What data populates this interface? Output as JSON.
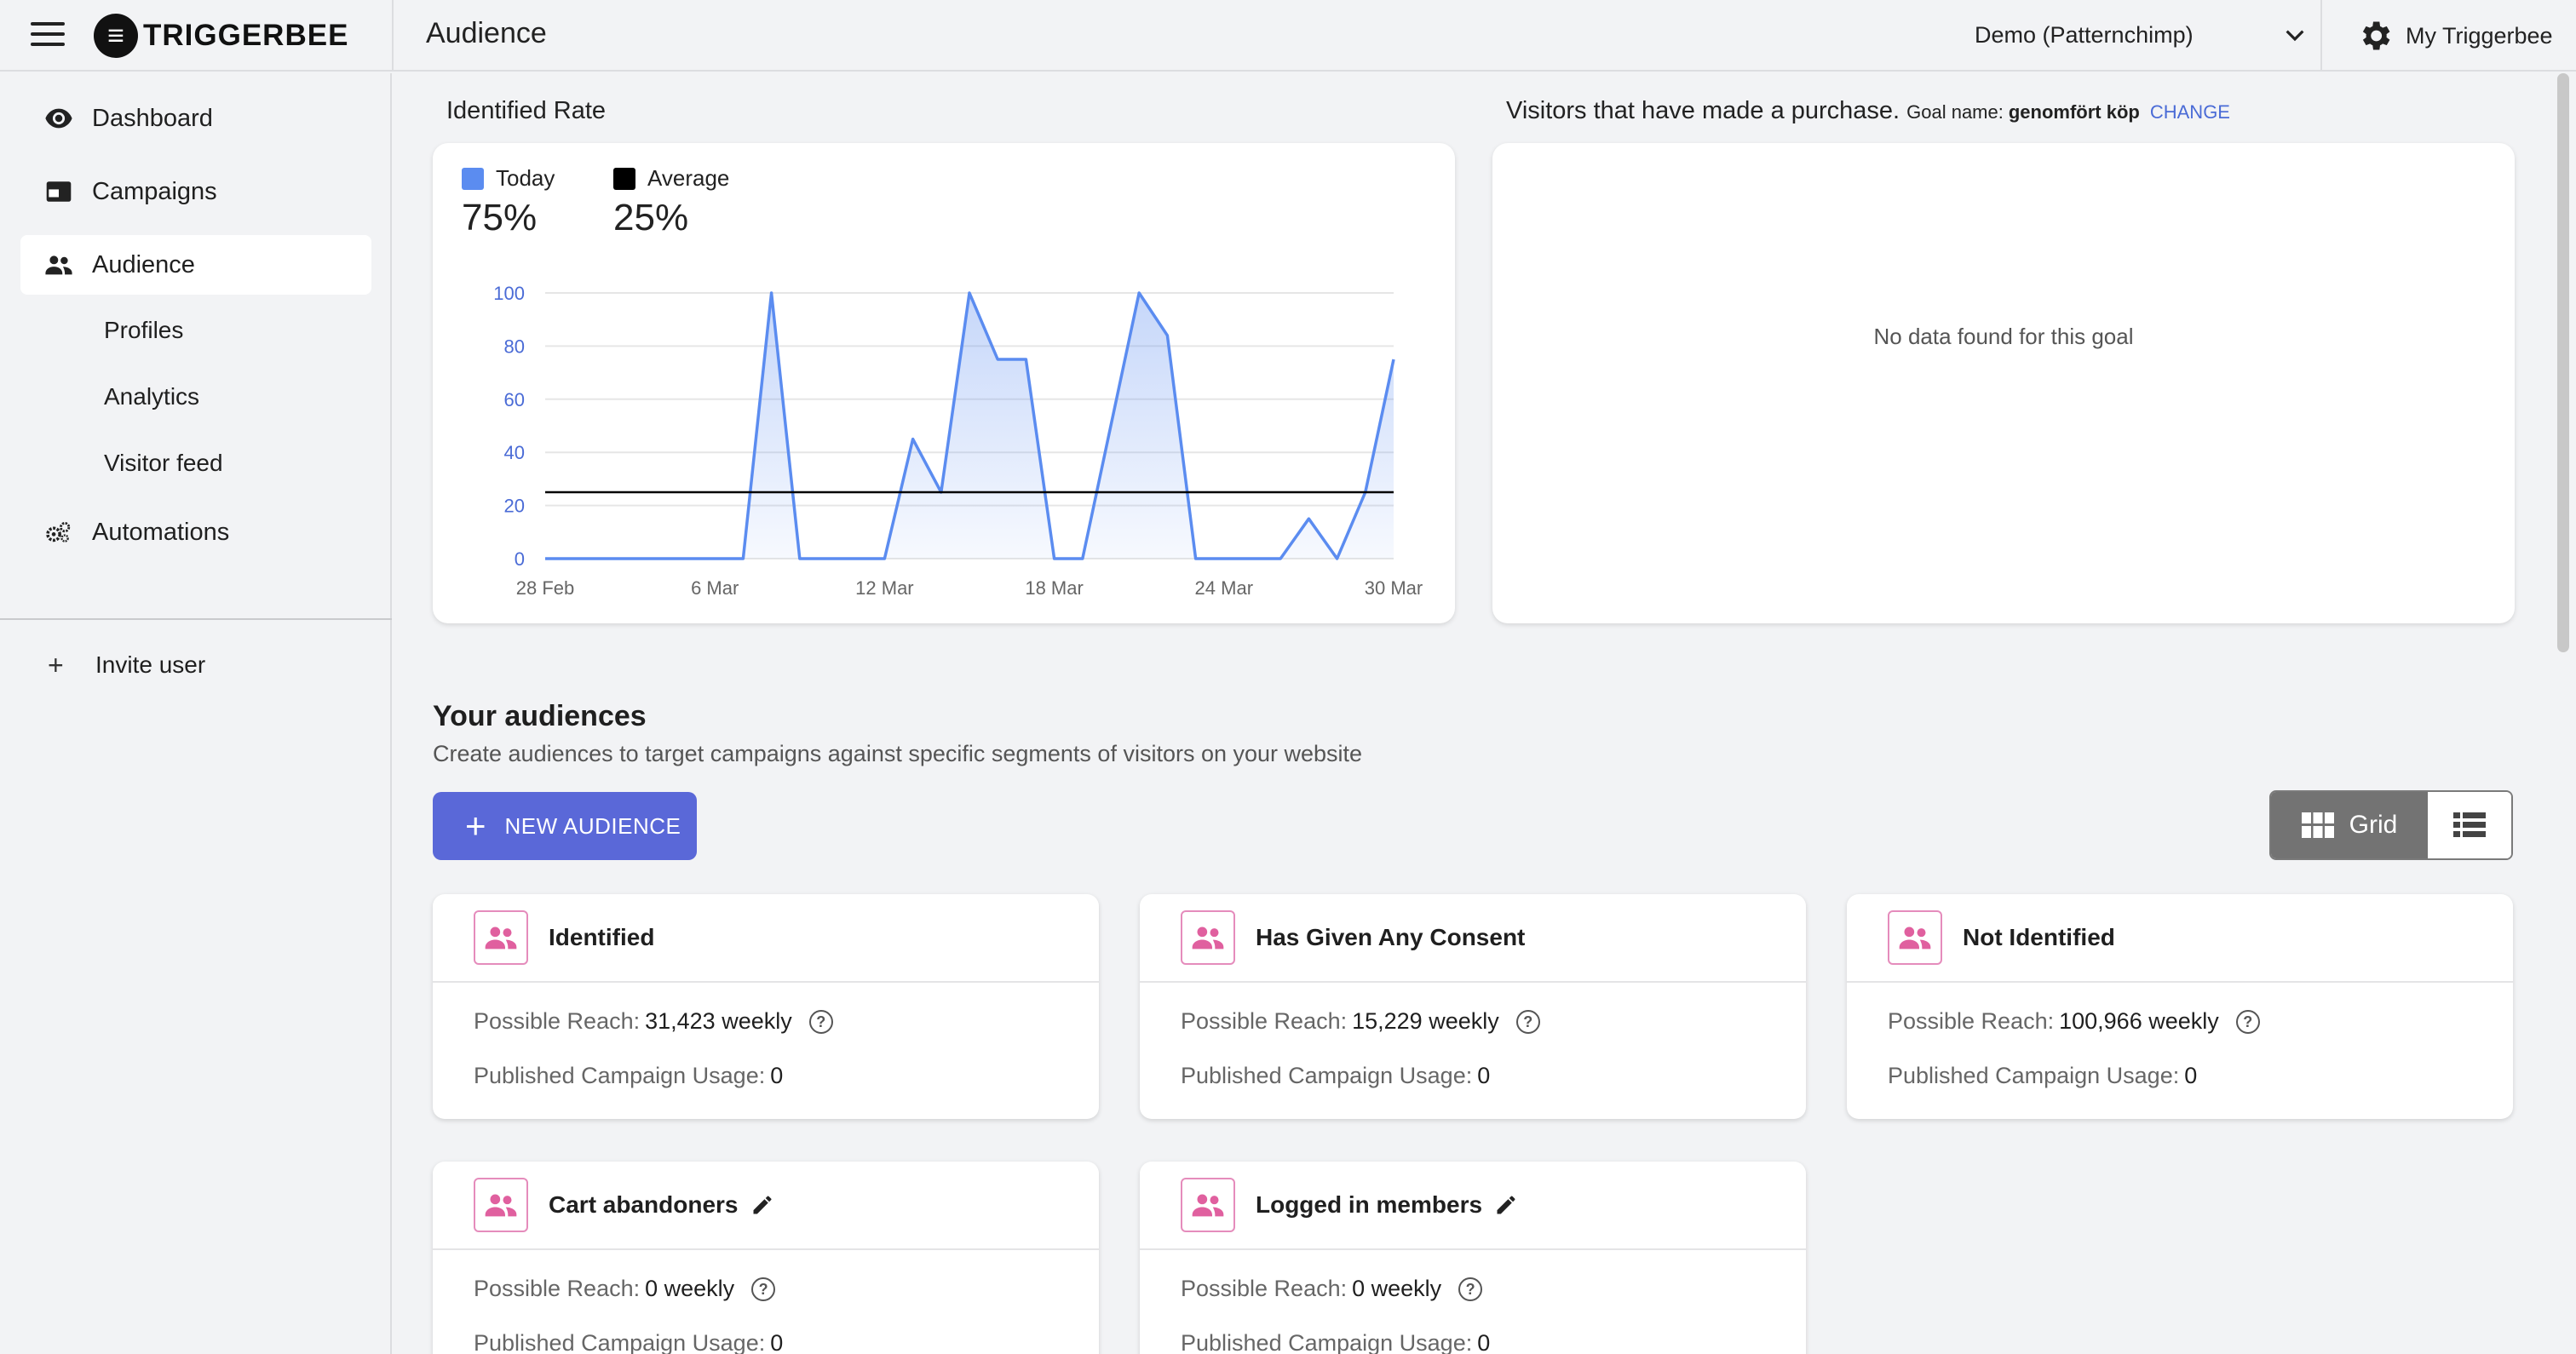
{
  "app": {
    "brand": "TRIGGERBEE",
    "page_title": "Audience"
  },
  "header": {
    "account": "Demo (Patternchimp)",
    "my_account": "My Triggerbee"
  },
  "sidebar": {
    "items": [
      {
        "label": "Dashboard",
        "icon": "eye-icon"
      },
      {
        "label": "Campaigns",
        "icon": "campaign-icon"
      },
      {
        "label": "Audience",
        "icon": "people-icon",
        "active": true
      },
      {
        "label": "Automations",
        "icon": "gears-icon"
      }
    ],
    "subitems": [
      "Profiles",
      "Analytics",
      "Visitor feed"
    ],
    "invite": "Invite user"
  },
  "identified_rate": {
    "title": "Identified Rate",
    "today_label": "Today",
    "today_value": "75%",
    "average_label": "Average",
    "average_value": "25%",
    "colors": {
      "today": "#5b8cf0",
      "average": "#000000"
    }
  },
  "chart_data": {
    "type": "area",
    "x": [
      "28 Feb",
      "1 Mar",
      "2 Mar",
      "3 Mar",
      "4 Mar",
      "5 Mar",
      "6 Mar",
      "7 Mar",
      "8 Mar",
      "9 Mar",
      "10 Mar",
      "11 Mar",
      "12 Mar",
      "13 Mar",
      "14 Mar",
      "15 Mar",
      "16 Mar",
      "17 Mar",
      "18 Mar",
      "19 Mar",
      "20 Mar",
      "21 Mar",
      "22 Mar",
      "23 Mar",
      "24 Mar",
      "25 Mar",
      "26 Mar",
      "27 Mar",
      "28 Mar",
      "29 Mar",
      "30 Mar"
    ],
    "series": [
      {
        "name": "Today",
        "values": [
          0,
          0,
          0,
          0,
          0,
          0,
          0,
          0,
          100,
          0,
          0,
          0,
          0,
          45,
          25,
          100,
          75,
          75,
          0,
          0,
          50,
          100,
          84,
          0,
          0,
          0,
          0,
          15,
          0,
          25,
          75
        ]
      },
      {
        "name": "Average",
        "values": [
          25,
          25,
          25,
          25,
          25,
          25,
          25,
          25,
          25,
          25,
          25,
          25,
          25,
          25,
          25,
          25,
          25,
          25,
          25,
          25,
          25,
          25,
          25,
          25,
          25,
          25,
          25,
          25,
          25,
          25,
          25
        ]
      }
    ],
    "xticks": [
      "28 Feb",
      "6 Mar",
      "12 Mar",
      "18 Mar",
      "24 Mar",
      "30 Mar"
    ],
    "yticks": [
      0,
      20,
      40,
      60,
      80,
      100
    ],
    "ylim": [
      0,
      100
    ],
    "grid": true
  },
  "purchase": {
    "title": "Visitors that have made a purchase.",
    "goal_prefix": "Goal name:",
    "goal_name": "genomfört köp",
    "change": "CHANGE",
    "empty": "No data found for this goal"
  },
  "audiences": {
    "heading": "Your audiences",
    "subheading": "Create audiences to target campaigns against specific segments of visitors on your website",
    "new_button": "NEW AUDIENCE",
    "view_grid": "Grid",
    "reach_label": "Possible Reach:",
    "usage_label": "Published Campaign Usage:",
    "cards": [
      {
        "name": "Identified",
        "reach": "31,423 weekly",
        "usage": "0",
        "editable": false
      },
      {
        "name": "Has Given Any Consent",
        "reach": "15,229 weekly",
        "usage": "0",
        "editable": false
      },
      {
        "name": "Not Identified",
        "reach": "100,966 weekly",
        "usage": "0",
        "editable": false
      },
      {
        "name": "Cart abandoners",
        "reach": "0 weekly",
        "usage": "0",
        "editable": true
      },
      {
        "name": "Logged in members",
        "reach": "0 weekly",
        "usage": "0",
        "editable": true
      }
    ]
  }
}
